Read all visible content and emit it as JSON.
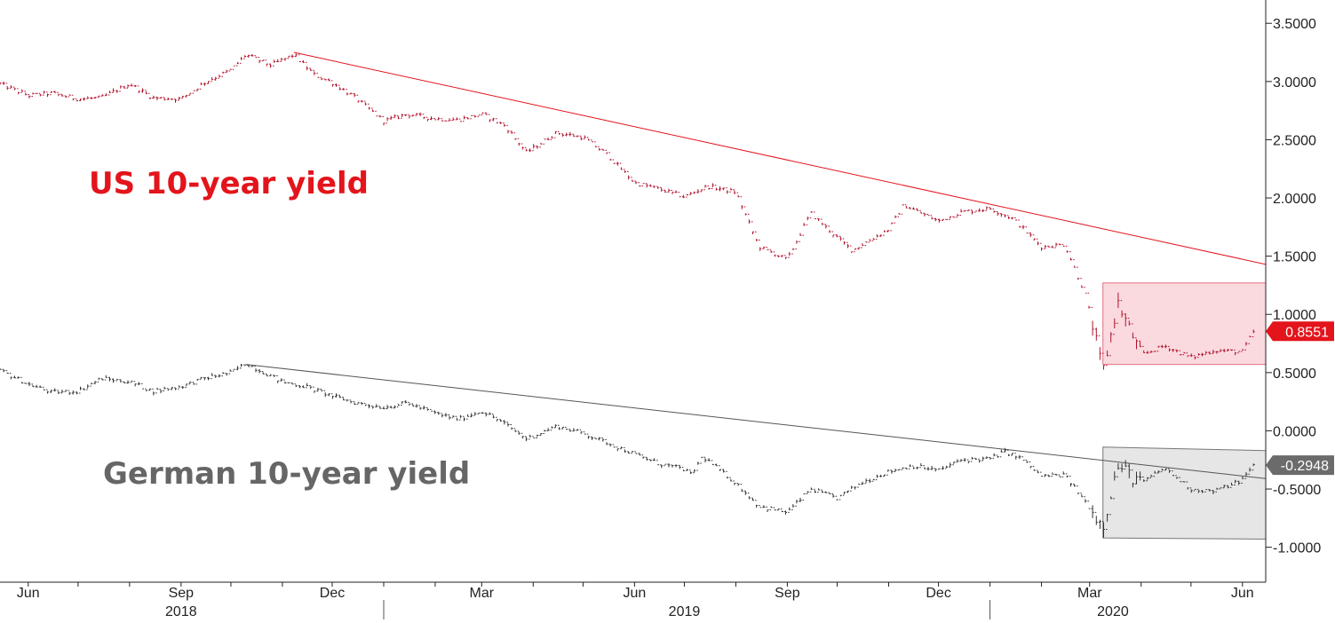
{
  "chart_data": {
    "type": "line",
    "title": "",
    "xlabel": "",
    "ylabel": "",
    "x_range": [
      "2018-05-15",
      "2020-06-15"
    ],
    "ylim": [
      -1.3,
      3.7
    ],
    "grid": false,
    "y_axis_position": "right",
    "y_ticks": [
      3.5,
      3.0,
      2.5,
      2.0,
      1.5,
      1.0,
      0.5,
      0.0,
      -0.5,
      -1.0
    ],
    "y_tick_labels": [
      "3.5000",
      "3.0000",
      "2.5000",
      "2.0000",
      "1.5000",
      "1.0000",
      "0.5000",
      "0.0000",
      "-0.5000",
      "-1.0000"
    ],
    "x_month_ticks": [
      {
        "date": "2018-06-01",
        "label": "Jun"
      },
      {
        "date": "2018-07-01",
        "label": ""
      },
      {
        "date": "2018-08-01",
        "label": ""
      },
      {
        "date": "2018-09-01",
        "label": "Sep"
      },
      {
        "date": "2018-10-01",
        "label": ""
      },
      {
        "date": "2018-11-01",
        "label": ""
      },
      {
        "date": "2018-12-01",
        "label": "Dec"
      },
      {
        "date": "2019-01-01",
        "label": ""
      },
      {
        "date": "2019-02-01",
        "label": ""
      },
      {
        "date": "2019-03-01",
        "label": "Mar"
      },
      {
        "date": "2019-04-01",
        "label": ""
      },
      {
        "date": "2019-05-01",
        "label": ""
      },
      {
        "date": "2019-06-01",
        "label": "Jun"
      },
      {
        "date": "2019-07-01",
        "label": ""
      },
      {
        "date": "2019-08-01",
        "label": ""
      },
      {
        "date": "2019-09-01",
        "label": "Sep"
      },
      {
        "date": "2019-10-01",
        "label": ""
      },
      {
        "date": "2019-11-01",
        "label": ""
      },
      {
        "date": "2019-12-01",
        "label": "Dec"
      },
      {
        "date": "2020-01-01",
        "label": ""
      },
      {
        "date": "2020-02-01",
        "label": ""
      },
      {
        "date": "2020-03-01",
        "label": "Mar"
      },
      {
        "date": "2020-04-01",
        "label": ""
      },
      {
        "date": "2020-05-01",
        "label": ""
      },
      {
        "date": "2020-06-01",
        "label": "Jun"
      }
    ],
    "x_year_labels": [
      {
        "date": "2018-09-01",
        "label": "2018"
      },
      {
        "date": "2019-07-01",
        "label": "2019"
      },
      {
        "date": "2020-03-15",
        "label": "2020"
      }
    ],
    "year_separators": [
      "2019-01-01",
      "2020-01-01"
    ],
    "series": [
      {
        "name": "US 10-year yield",
        "color": "#b0122c",
        "label_color": "#e3141b",
        "last_value_label": "0.8551",
        "last_value": 0.8551,
        "points": [
          [
            "2018-05-15",
            2.98
          ],
          [
            "2018-06-01",
            2.88
          ],
          [
            "2018-06-15",
            2.9
          ],
          [
            "2018-07-01",
            2.85
          ],
          [
            "2018-07-15",
            2.86
          ],
          [
            "2018-08-01",
            2.98
          ],
          [
            "2018-08-15",
            2.86
          ],
          [
            "2018-09-01",
            2.85
          ],
          [
            "2018-09-15",
            2.99
          ],
          [
            "2018-10-01",
            3.1
          ],
          [
            "2018-10-10",
            3.23
          ],
          [
            "2018-10-25",
            3.14
          ],
          [
            "2018-11-08",
            3.23
          ],
          [
            "2018-11-20",
            3.06
          ],
          [
            "2018-12-01",
            2.99
          ],
          [
            "2018-12-15",
            2.86
          ],
          [
            "2019-01-01",
            2.66
          ],
          [
            "2019-01-15",
            2.72
          ],
          [
            "2019-02-01",
            2.68
          ],
          [
            "2019-02-15",
            2.67
          ],
          [
            "2019-03-01",
            2.72
          ],
          [
            "2019-03-15",
            2.62
          ],
          [
            "2019-03-28",
            2.39
          ],
          [
            "2019-04-15",
            2.56
          ],
          [
            "2019-05-01",
            2.52
          ],
          [
            "2019-05-15",
            2.38
          ],
          [
            "2019-06-01",
            2.13
          ],
          [
            "2019-06-15",
            2.08
          ],
          [
            "2019-07-01",
            2.01
          ],
          [
            "2019-07-15",
            2.1
          ],
          [
            "2019-08-01",
            2.05
          ],
          [
            "2019-08-15",
            1.58
          ],
          [
            "2019-09-01",
            1.47
          ],
          [
            "2019-09-15",
            1.87
          ],
          [
            "2019-10-01",
            1.66
          ],
          [
            "2019-10-10",
            1.55
          ],
          [
            "2019-11-01",
            1.73
          ],
          [
            "2019-11-10",
            1.94
          ],
          [
            "2019-12-01",
            1.8
          ],
          [
            "2019-12-15",
            1.88
          ],
          [
            "2020-01-01",
            1.91
          ],
          [
            "2020-01-15",
            1.82
          ],
          [
            "2020-02-01",
            1.58
          ],
          [
            "2020-02-15",
            1.6
          ],
          [
            "2020-02-28",
            1.15
          ],
          [
            "2020-03-09",
            0.5
          ],
          [
            "2020-03-18",
            1.1
          ],
          [
            "2020-04-01",
            0.65
          ],
          [
            "2020-04-15",
            0.73
          ],
          [
            "2020-05-01",
            0.63
          ],
          [
            "2020-05-15",
            0.69
          ],
          [
            "2020-06-01",
            0.68
          ],
          [
            "2020-06-08",
            0.86
          ]
        ],
        "trendline": [
          [
            "2018-11-08",
            3.25
          ],
          [
            "2020-06-15",
            1.43
          ]
        ],
        "range_band": {
          "from": "2020-03-09",
          "to": "2020-06-15",
          "high": 1.27,
          "low": 0.57
        }
      },
      {
        "name": "German 10-year yield",
        "color": "#333333",
        "label_color": "#666666",
        "last_value_label": "-0.2948",
        "last_value": -0.2948,
        "points": [
          [
            "2018-05-15",
            0.52
          ],
          [
            "2018-06-01",
            0.4
          ],
          [
            "2018-06-15",
            0.33
          ],
          [
            "2018-07-01",
            0.34
          ],
          [
            "2018-07-15",
            0.45
          ],
          [
            "2018-08-01",
            0.42
          ],
          [
            "2018-08-15",
            0.34
          ],
          [
            "2018-09-01",
            0.38
          ],
          [
            "2018-09-15",
            0.45
          ],
          [
            "2018-10-01",
            0.5
          ],
          [
            "2018-10-10",
            0.58
          ],
          [
            "2018-11-01",
            0.42
          ],
          [
            "2018-11-15",
            0.38
          ],
          [
            "2018-12-01",
            0.3
          ],
          [
            "2018-12-15",
            0.24
          ],
          [
            "2019-01-01",
            0.2
          ],
          [
            "2019-01-15",
            0.24
          ],
          [
            "2019-02-01",
            0.15
          ],
          [
            "2019-02-15",
            0.1
          ],
          [
            "2019-03-01",
            0.17
          ],
          [
            "2019-03-15",
            0.06
          ],
          [
            "2019-03-28",
            -0.07
          ],
          [
            "2019-04-15",
            0.04
          ],
          [
            "2019-05-01",
            -0.02
          ],
          [
            "2019-05-15",
            -0.1
          ],
          [
            "2019-06-01",
            -0.2
          ],
          [
            "2019-06-15",
            -0.28
          ],
          [
            "2019-07-01",
            -0.33
          ],
          [
            "2019-07-05",
            -0.38
          ],
          [
            "2019-07-12",
            -0.22
          ],
          [
            "2019-08-01",
            -0.45
          ],
          [
            "2019-08-15",
            -0.65
          ],
          [
            "2019-09-01",
            -0.7
          ],
          [
            "2019-09-15",
            -0.5
          ],
          [
            "2019-10-01",
            -0.58
          ],
          [
            "2019-10-15",
            -0.45
          ],
          [
            "2019-11-01",
            -0.35
          ],
          [
            "2019-11-15",
            -0.3
          ],
          [
            "2019-12-01",
            -0.34
          ],
          [
            "2019-12-15",
            -0.25
          ],
          [
            "2020-01-01",
            -0.24
          ],
          [
            "2020-01-10",
            -0.18
          ],
          [
            "2020-01-20",
            -0.24
          ],
          [
            "2020-02-01",
            -0.39
          ],
          [
            "2020-02-15",
            -0.38
          ],
          [
            "2020-02-28",
            -0.62
          ],
          [
            "2020-03-09",
            -0.82
          ],
          [
            "2020-03-18",
            -0.3
          ],
          [
            "2020-04-01",
            -0.45
          ],
          [
            "2020-04-15",
            -0.32
          ],
          [
            "2020-05-01",
            -0.5
          ],
          [
            "2020-05-15",
            -0.52
          ],
          [
            "2020-06-01",
            -0.42
          ],
          [
            "2020-06-08",
            -0.29
          ]
        ],
        "trendline": [
          [
            "2018-10-10",
            0.57
          ],
          [
            "2020-06-15",
            -0.41
          ]
        ],
        "range_band": {
          "from": "2020-03-09",
          "to": "2020-06-15",
          "high_start": -0.14,
          "high_end": -0.17,
          "low_start": -0.92,
          "low_end": -0.93
        }
      }
    ]
  }
}
